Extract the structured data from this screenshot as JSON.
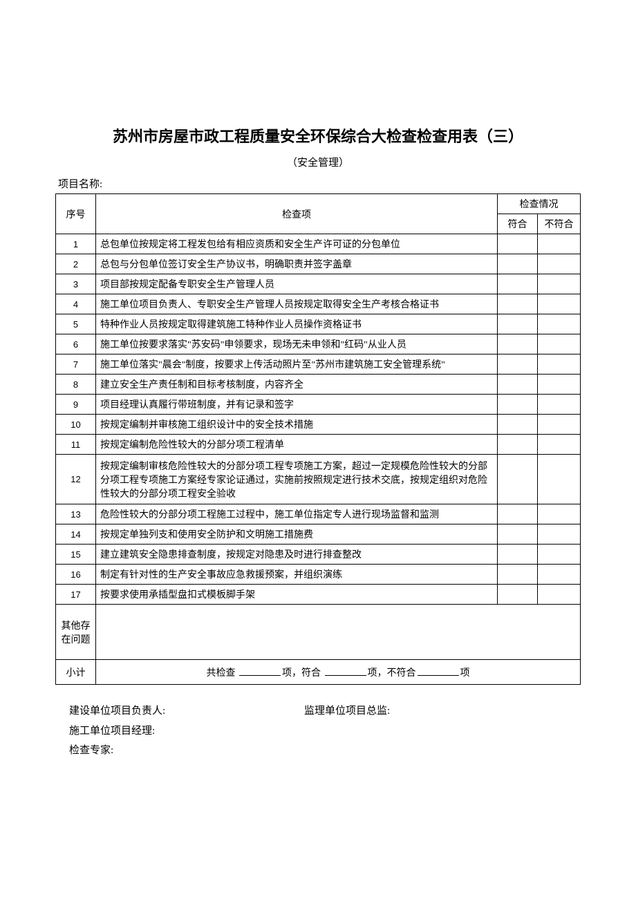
{
  "title": "苏州市房屋市政工程质量安全环保综合大检查检查用表（三）",
  "subtitle": "（安全管理）",
  "project_label": "项目名称:",
  "headers": {
    "seq": "序号",
    "item": "检查项",
    "status": "检查情况",
    "conform": "符合",
    "nonconform": "不符合"
  },
  "rows": [
    {
      "seq": "1",
      "item": "总包单位按规定将工程发包给有相应资质和安全生产许可证的分包单位"
    },
    {
      "seq": "2",
      "item": "总包与分包单位签订安全生产协议书，明确职责并签字盖章"
    },
    {
      "seq": "3",
      "item": "项目部按规定配备专职安全生产管理人员"
    },
    {
      "seq": "4",
      "item": "施工单位项目负责人、专职安全生产管理人员按规定取得安全生产考核合格证书"
    },
    {
      "seq": "5",
      "item": "特种作业人员按规定取得建筑施工特种作业人员操作资格证书"
    },
    {
      "seq": "6",
      "item": "施工单位按要求落实\"苏安码\"申领要求，现场无未申领和\"红码\"从业人员"
    },
    {
      "seq": "7",
      "item": "施工单位落实\"晨会\"制度，按要求上传活动照片至\"苏州市建筑施工安全管理系统\""
    },
    {
      "seq": "8",
      "item": "建立安全生产责任制和目标考核制度，内容齐全"
    },
    {
      "seq": "9",
      "item": "项目经理认真履行带班制度，并有记录和签字"
    },
    {
      "seq": "10",
      "item": "按规定编制并审核施工组织设计中的安全技术措施"
    },
    {
      "seq": "11",
      "item": "按规定编制危险性较大的分部分项工程清单"
    },
    {
      "seq": "12",
      "item": "按规定编制审核危险性较大的分部分项工程专项施工方案，超过一定规模危险性较大的分部分项工程专项施工方案经专家论证通过，实施前按照规定进行技术交底，按规定组织对危险性较大的分部分项工程安全验收",
      "tall": true
    },
    {
      "seq": "13",
      "item": "危险性较大的分部分项工程施工过程中，施工单位指定专人进行现场监督和监测"
    },
    {
      "seq": "14",
      "item": "按规定单独列支和使用安全防护和文明施工措施费"
    },
    {
      "seq": "15",
      "item": "建立建筑安全隐患排查制度，按规定对隐患及时进行排查整改"
    },
    {
      "seq": "16",
      "item": "制定有针对性的生产安全事故应急救援预案，并组织演练"
    },
    {
      "seq": "17",
      "item": "按要求使用承插型盘扣式模板脚手架"
    }
  ],
  "other_label": "其他存在问题",
  "subtotal_label": "小计",
  "subtotal_text": {
    "prefix": "共检查",
    "mid1": "项，符合",
    "mid2": "项，不符合",
    "suffix": "项"
  },
  "signatures": {
    "builder": "建设单位项目负责人:",
    "supervisor": "监理单位项目总监:",
    "constructor": "施工单位项目经理:",
    "expert": "检查专家:"
  }
}
